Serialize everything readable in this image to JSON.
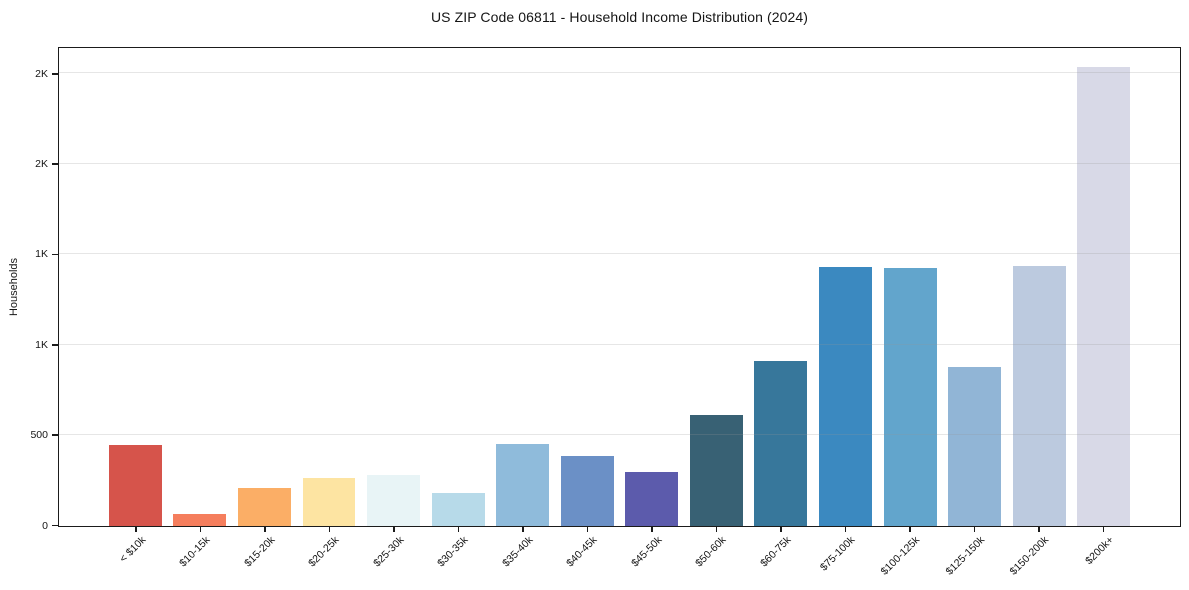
{
  "title": "US ZIP Code 06811 - Household Income Distribution (2024)",
  "chart_data": {
    "type": "bar",
    "title": "US ZIP Code 06811 - Household Income Distribution (2024)",
    "xlabel": "",
    "ylabel": "Households",
    "categories": [
      "< $10k",
      "$10-15k",
      "$15-20k",
      "$20-25k",
      "$25-30k",
      "$30-35k",
      "$35-40k",
      "$40-45k",
      "$45-50k",
      "$50-60k",
      "$60-75k",
      "$75-100k",
      "$100-125k",
      "$125-150k",
      "$150-200k",
      "$200k+"
    ],
    "values": [
      450,
      65,
      210,
      265,
      280,
      185,
      455,
      388,
      298,
      615,
      910,
      1428,
      1424,
      878,
      1435,
      2535
    ],
    "bar_colors": [
      "#d6544b",
      "#f57e5d",
      "#fbae66",
      "#fde4a2",
      "#e8f4f6",
      "#b7dae9",
      "#8fbbdb",
      "#6b90c6",
      "#5c5bac",
      "#386174",
      "#37779b",
      "#3b89c0",
      "#62a5cc",
      "#91b5d6",
      "#bccadf",
      "#d8d9e7"
    ],
    "ylim": [
      0,
      2640
    ],
    "yticks": [
      {
        "value": 0,
        "label": "0"
      },
      {
        "value": 500,
        "label": "500"
      },
      {
        "value": 1000,
        "label": "1K"
      },
      {
        "value": 1500,
        "label": "1K"
      },
      {
        "value": 2000,
        "label": "2K"
      },
      {
        "value": 2500,
        "label": "2K"
      }
    ],
    "grid": "horizontal-light",
    "legend": "none",
    "frame": "full-box"
  }
}
